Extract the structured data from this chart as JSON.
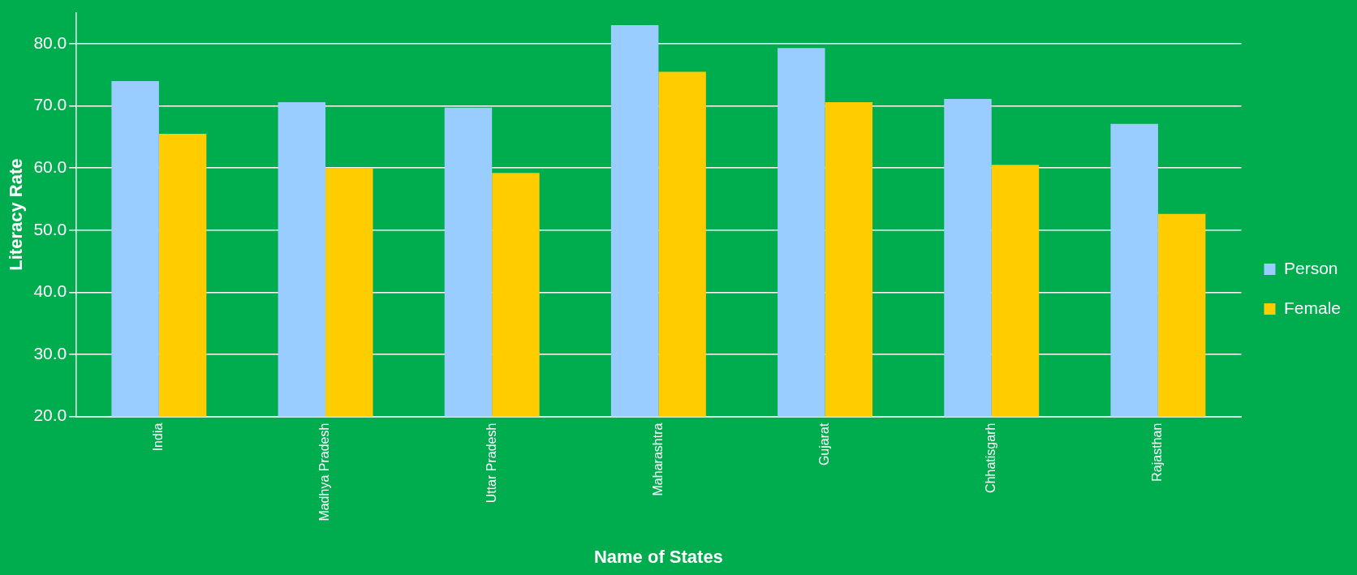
{
  "chart_data": {
    "type": "bar",
    "xlabel": "Name of States",
    "ylabel": "Literacy Rate",
    "categories": [
      "India",
      "Madhya Pradesh",
      "Uttar Pradesh",
      "Maharashtra",
      "Gujarat",
      "Chhatisgarh",
      "Rajasthan"
    ],
    "series": [
      {
        "name": "Person",
        "color": "#99ccff",
        "values": [
          74.0,
          70.6,
          69.7,
          83.0,
          79.3,
          71.1,
          67.1
        ]
      },
      {
        "name": "Female",
        "color": "#ffcc00",
        "values": [
          65.5,
          60.0,
          59.2,
          75.5,
          70.6,
          60.5,
          52.6
        ]
      }
    ],
    "ylim": [
      20,
      85
    ],
    "yticks": [
      {
        "value": 20,
        "label": "20.0"
      },
      {
        "value": 30,
        "label": "30.0"
      },
      {
        "value": 40,
        "label": "40.0"
      },
      {
        "value": 50,
        "label": "50.0"
      },
      {
        "value": 60,
        "label": "60.0"
      },
      {
        "value": 70,
        "label": "70.0"
      },
      {
        "value": 80,
        "label": "80.0"
      }
    ],
    "grid": "y",
    "legend": "right"
  }
}
